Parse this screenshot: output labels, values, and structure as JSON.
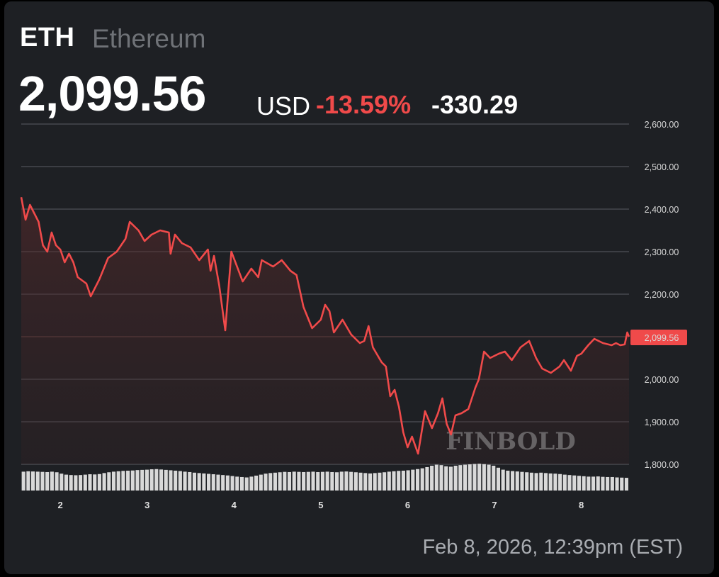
{
  "header": {
    "ticker": "ETH",
    "name": "Ethereum",
    "price": "2,099.56",
    "currency": "USD",
    "change_pct": "-13.59%",
    "change_abs": "-330.29"
  },
  "timestamp": "Feb 8, 2026, 12:39pm (EST)",
  "watermark": "FINBOLD",
  "colors": {
    "background": "#1e2024",
    "line": "#f04a4a",
    "negative": "#f04a4a",
    "price_label_bg": "#f04a4a",
    "volume": "#d9d9d9",
    "grid": "#5a5d63",
    "muted_text": "#6f7277"
  },
  "chart_data": {
    "type": "area",
    "y_ticks": [
      "2,600.00",
      "2,500.00",
      "2,400.00",
      "2,300.00",
      "2,200.00",
      "2,100.00",
      "2,000.00",
      "1,900.00",
      "1,800.00"
    ],
    "x_ticks": [
      "2",
      "3",
      "4",
      "5",
      "6",
      "7",
      "8"
    ],
    "current_price_label": "2,099.56",
    "ylim": [
      1800,
      2600
    ],
    "xlim": [
      1.55,
      8.55
    ],
    "grid": true,
    "series": [
      {
        "values": [
          [
            1.55,
            2428
          ],
          [
            1.6,
            2375
          ],
          [
            1.65,
            2410
          ],
          [
            1.7,
            2390
          ],
          [
            1.75,
            2370
          ],
          [
            1.8,
            2315
          ],
          [
            1.85,
            2300
          ],
          [
            1.9,
            2345
          ],
          [
            1.95,
            2315
          ],
          [
            2.0,
            2305
          ],
          [
            2.05,
            2275
          ],
          [
            2.1,
            2295
          ],
          [
            2.15,
            2275
          ],
          [
            2.2,
            2240
          ],
          [
            2.3,
            2225
          ],
          [
            2.35,
            2195
          ],
          [
            2.45,
            2235
          ],
          [
            2.55,
            2285
          ],
          [
            2.65,
            2300
          ],
          [
            2.75,
            2330
          ],
          [
            2.8,
            2370
          ],
          [
            2.9,
            2350
          ],
          [
            2.97,
            2325
          ],
          [
            3.05,
            2340
          ],
          [
            3.15,
            2350
          ],
          [
            3.25,
            2345
          ],
          [
            3.27,
            2295
          ],
          [
            3.32,
            2340
          ],
          [
            3.4,
            2320
          ],
          [
            3.5,
            2310
          ],
          [
            3.6,
            2280
          ],
          [
            3.7,
            2305
          ],
          [
            3.73,
            2255
          ],
          [
            3.77,
            2290
          ],
          [
            3.83,
            2220
          ],
          [
            3.9,
            2115
          ],
          [
            3.97,
            2300
          ],
          [
            4.1,
            2230
          ],
          [
            4.2,
            2260
          ],
          [
            4.28,
            2240
          ],
          [
            4.32,
            2280
          ],
          [
            4.45,
            2265
          ],
          [
            4.55,
            2280
          ],
          [
            4.65,
            2255
          ],
          [
            4.72,
            2245
          ],
          [
            4.8,
            2170
          ],
          [
            4.9,
            2120
          ],
          [
            5.0,
            2140
          ],
          [
            5.05,
            2175
          ],
          [
            5.1,
            2160
          ],
          [
            5.15,
            2110
          ],
          [
            5.25,
            2140
          ],
          [
            5.35,
            2105
          ],
          [
            5.45,
            2085
          ],
          [
            5.5,
            2090
          ],
          [
            5.55,
            2125
          ],
          [
            5.6,
            2075
          ],
          [
            5.7,
            2040
          ],
          [
            5.75,
            2030
          ],
          [
            5.8,
            1960
          ],
          [
            5.85,
            1975
          ],
          [
            5.9,
            1935
          ],
          [
            5.95,
            1875
          ],
          [
            6.0,
            1840
          ],
          [
            6.05,
            1865
          ],
          [
            6.12,
            1825
          ],
          [
            6.2,
            1925
          ],
          [
            6.28,
            1885
          ],
          [
            6.35,
            1920
          ],
          [
            6.4,
            1955
          ],
          [
            6.45,
            1895
          ],
          [
            6.5,
            1870
          ],
          [
            6.55,
            1915
          ],
          [
            6.62,
            1920
          ],
          [
            6.7,
            1930
          ],
          [
            6.78,
            1980
          ],
          [
            6.82,
            2000
          ],
          [
            6.88,
            2065
          ],
          [
            6.95,
            2050
          ],
          [
            7.05,
            2060
          ],
          [
            7.12,
            2065
          ],
          [
            7.2,
            2045
          ],
          [
            7.3,
            2075
          ],
          [
            7.4,
            2090
          ],
          [
            7.48,
            2050
          ],
          [
            7.55,
            2025
          ],
          [
            7.65,
            2015
          ],
          [
            7.75,
            2030
          ],
          [
            7.8,
            2045
          ],
          [
            7.88,
            2020
          ],
          [
            7.95,
            2055
          ],
          [
            8.0,
            2060
          ],
          [
            8.08,
            2080
          ],
          [
            8.15,
            2095
          ],
          [
            8.25,
            2085
          ],
          [
            8.35,
            2080
          ],
          [
            8.4,
            2085
          ],
          [
            8.45,
            2080
          ],
          [
            8.5,
            2082
          ],
          [
            8.53,
            2110
          ],
          [
            8.55,
            2100
          ]
        ]
      }
    ],
    "volume": [
      0.95,
      0.97,
      0.96,
      0.95,
      0.94,
      0.93,
      0.95,
      0.92,
      0.85,
      0.8,
      0.78,
      0.77,
      0.78,
      0.8,
      0.82,
      0.81,
      0.83,
      0.88,
      0.92,
      0.95,
      0.97,
      0.99,
      1.0,
      1.01,
      1.03,
      1.04,
      1.05,
      1.07,
      1.08,
      1.06,
      1.04,
      1.02,
      1.0,
      0.98,
      0.95,
      0.93,
      0.9,
      0.88,
      0.86,
      0.84,
      0.82,
      0.8,
      0.78,
      0.76,
      0.73,
      0.7,
      0.68,
      0.66,
      0.7,
      0.75,
      0.8,
      0.85,
      0.88,
      0.9,
      0.92,
      0.94,
      0.93,
      0.95,
      0.94,
      0.93,
      0.94,
      0.95,
      0.93,
      0.94,
      0.95,
      0.93,
      0.92,
      0.95,
      0.96,
      0.94,
      0.92,
      0.9,
      0.88,
      0.86,
      0.88,
      0.9,
      0.92,
      0.95,
      0.97,
      0.99,
      1.0,
      1.02,
      1.05,
      1.08,
      1.12,
      1.18,
      1.25,
      1.3,
      1.28,
      1.22,
      1.2,
      1.25,
      1.28,
      1.3,
      1.32,
      1.34,
      1.35,
      1.33,
      1.3,
      1.25,
      1.15,
      1.05,
      1.0,
      0.98,
      0.96,
      0.94,
      0.92,
      0.9,
      0.88,
      0.9,
      0.88,
      0.86,
      0.85,
      0.83,
      0.8,
      0.78,
      0.76,
      0.74,
      0.72,
      0.7,
      0.7,
      0.71,
      0.69,
      0.68,
      0.68,
      0.66,
      0.65,
      0.64
    ],
    "title": "",
    "xlabel": "",
    "ylabel": ""
  }
}
